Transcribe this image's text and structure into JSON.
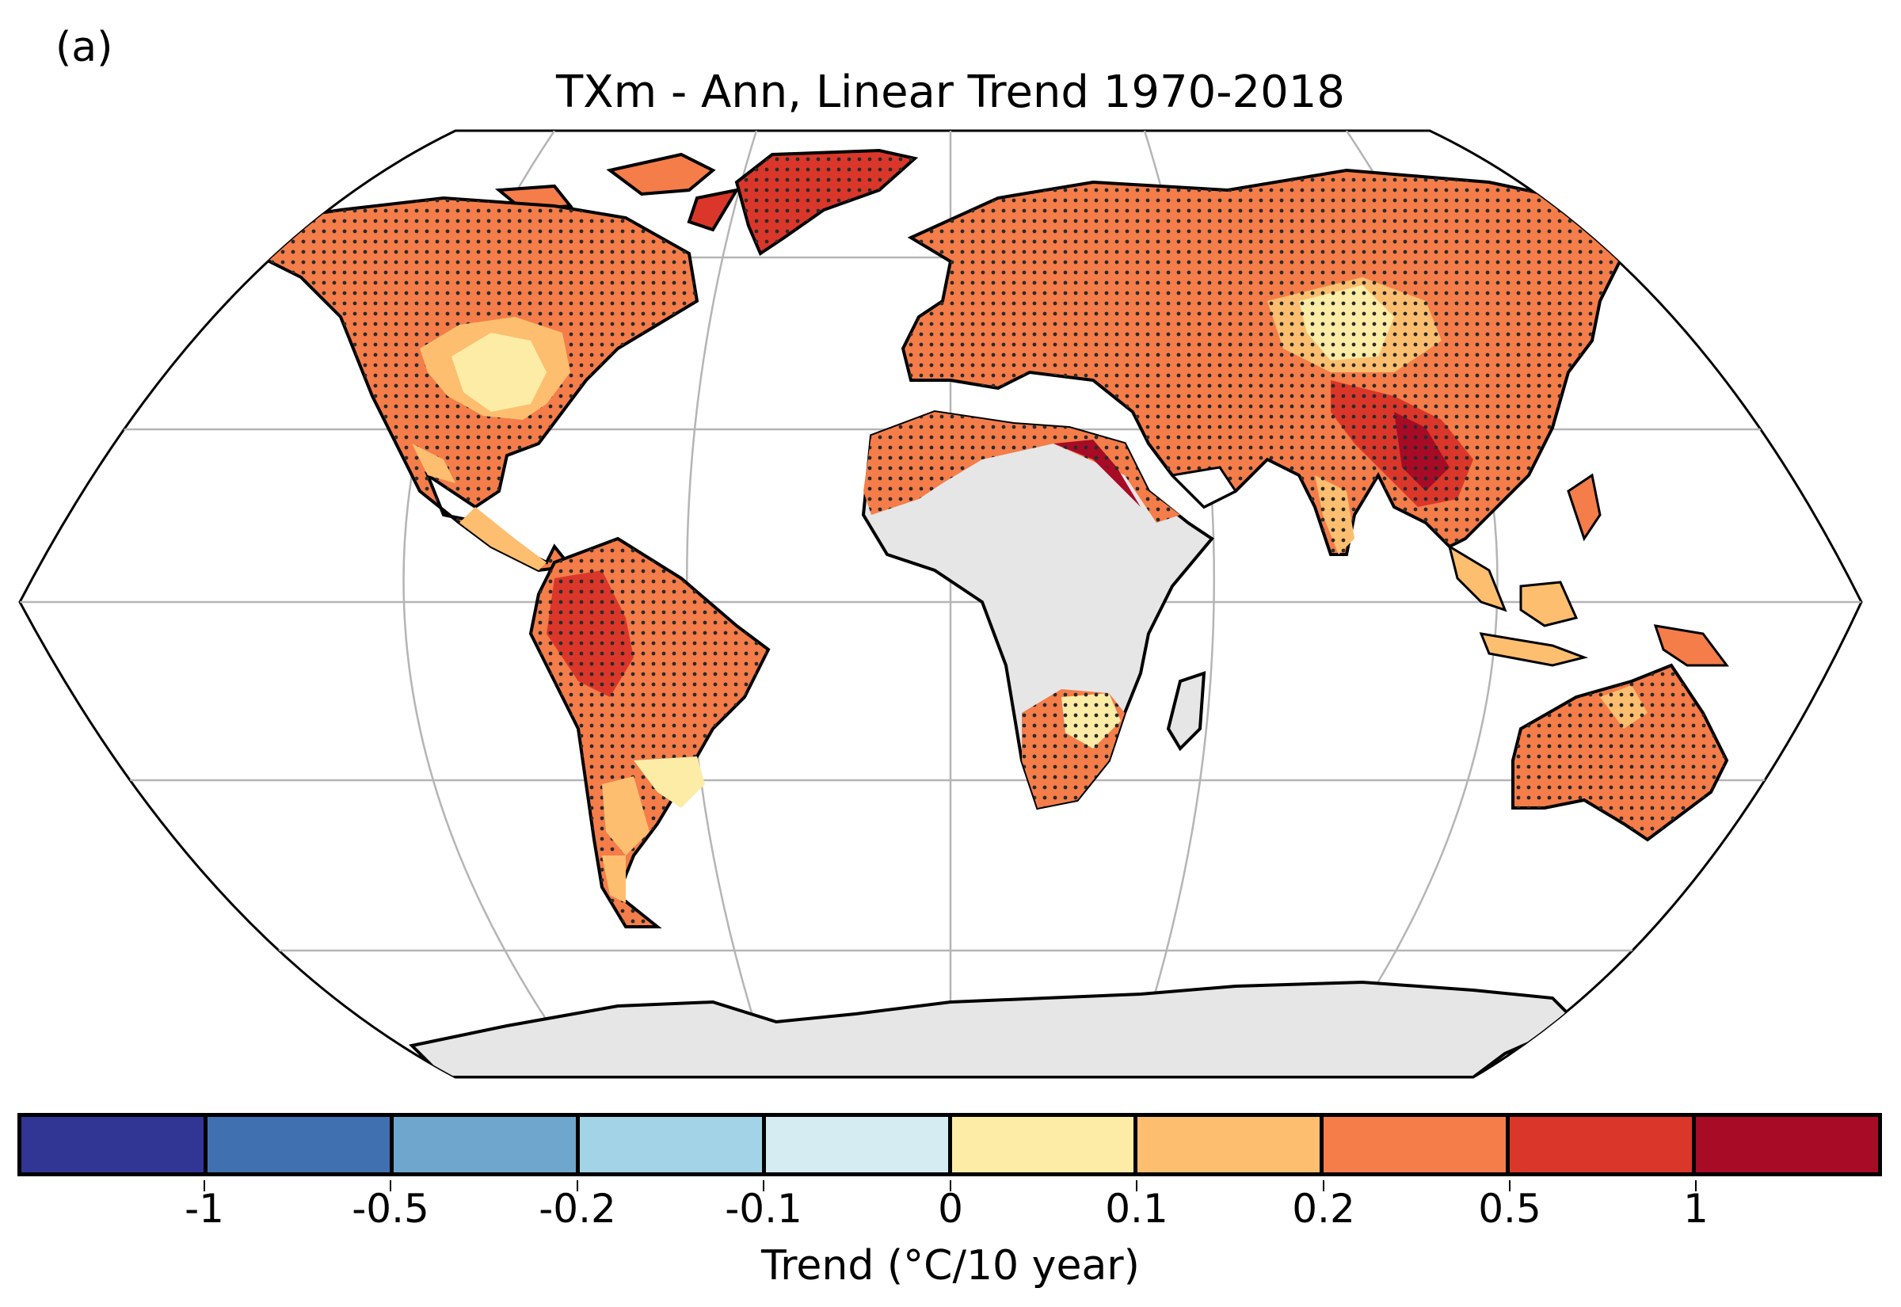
{
  "panel_label": "(a)",
  "title": "TXm - Ann, Linear Trend 1970-2018",
  "colorbar": {
    "label": "Trend (°C/10 year)",
    "segments": [
      {
        "color": "#313695",
        "range": "< -1"
      },
      {
        "color": "#4170b0",
        "range": "-1 to -0.5"
      },
      {
        "color": "#6ea6cd",
        "range": "-0.5 to -0.2"
      },
      {
        "color": "#a3d3e6",
        "range": "-0.2 to -0.1"
      },
      {
        "color": "#d5ecf2",
        "range": "-0.1 to 0"
      },
      {
        "color": "#fdeca6",
        "range": "0 to 0.1"
      },
      {
        "color": "#fdbe6f",
        "range": "0.1 to 0.2"
      },
      {
        "color": "#f47d4a",
        "range": "0.2 to 0.5"
      },
      {
        "color": "#da372a",
        "range": "0.5 to 1"
      },
      {
        "color": "#a70b26",
        "range": "> 1"
      }
    ],
    "ticks": [
      "-1",
      "-0.5",
      "-0.2",
      "-0.1",
      "0",
      "0.1",
      "0.2",
      "0.5",
      "1"
    ]
  },
  "map": {
    "projection": "Robinson",
    "no_data_color": "#e6e6e6",
    "graticule": true,
    "stippling": "significant trend"
  }
}
